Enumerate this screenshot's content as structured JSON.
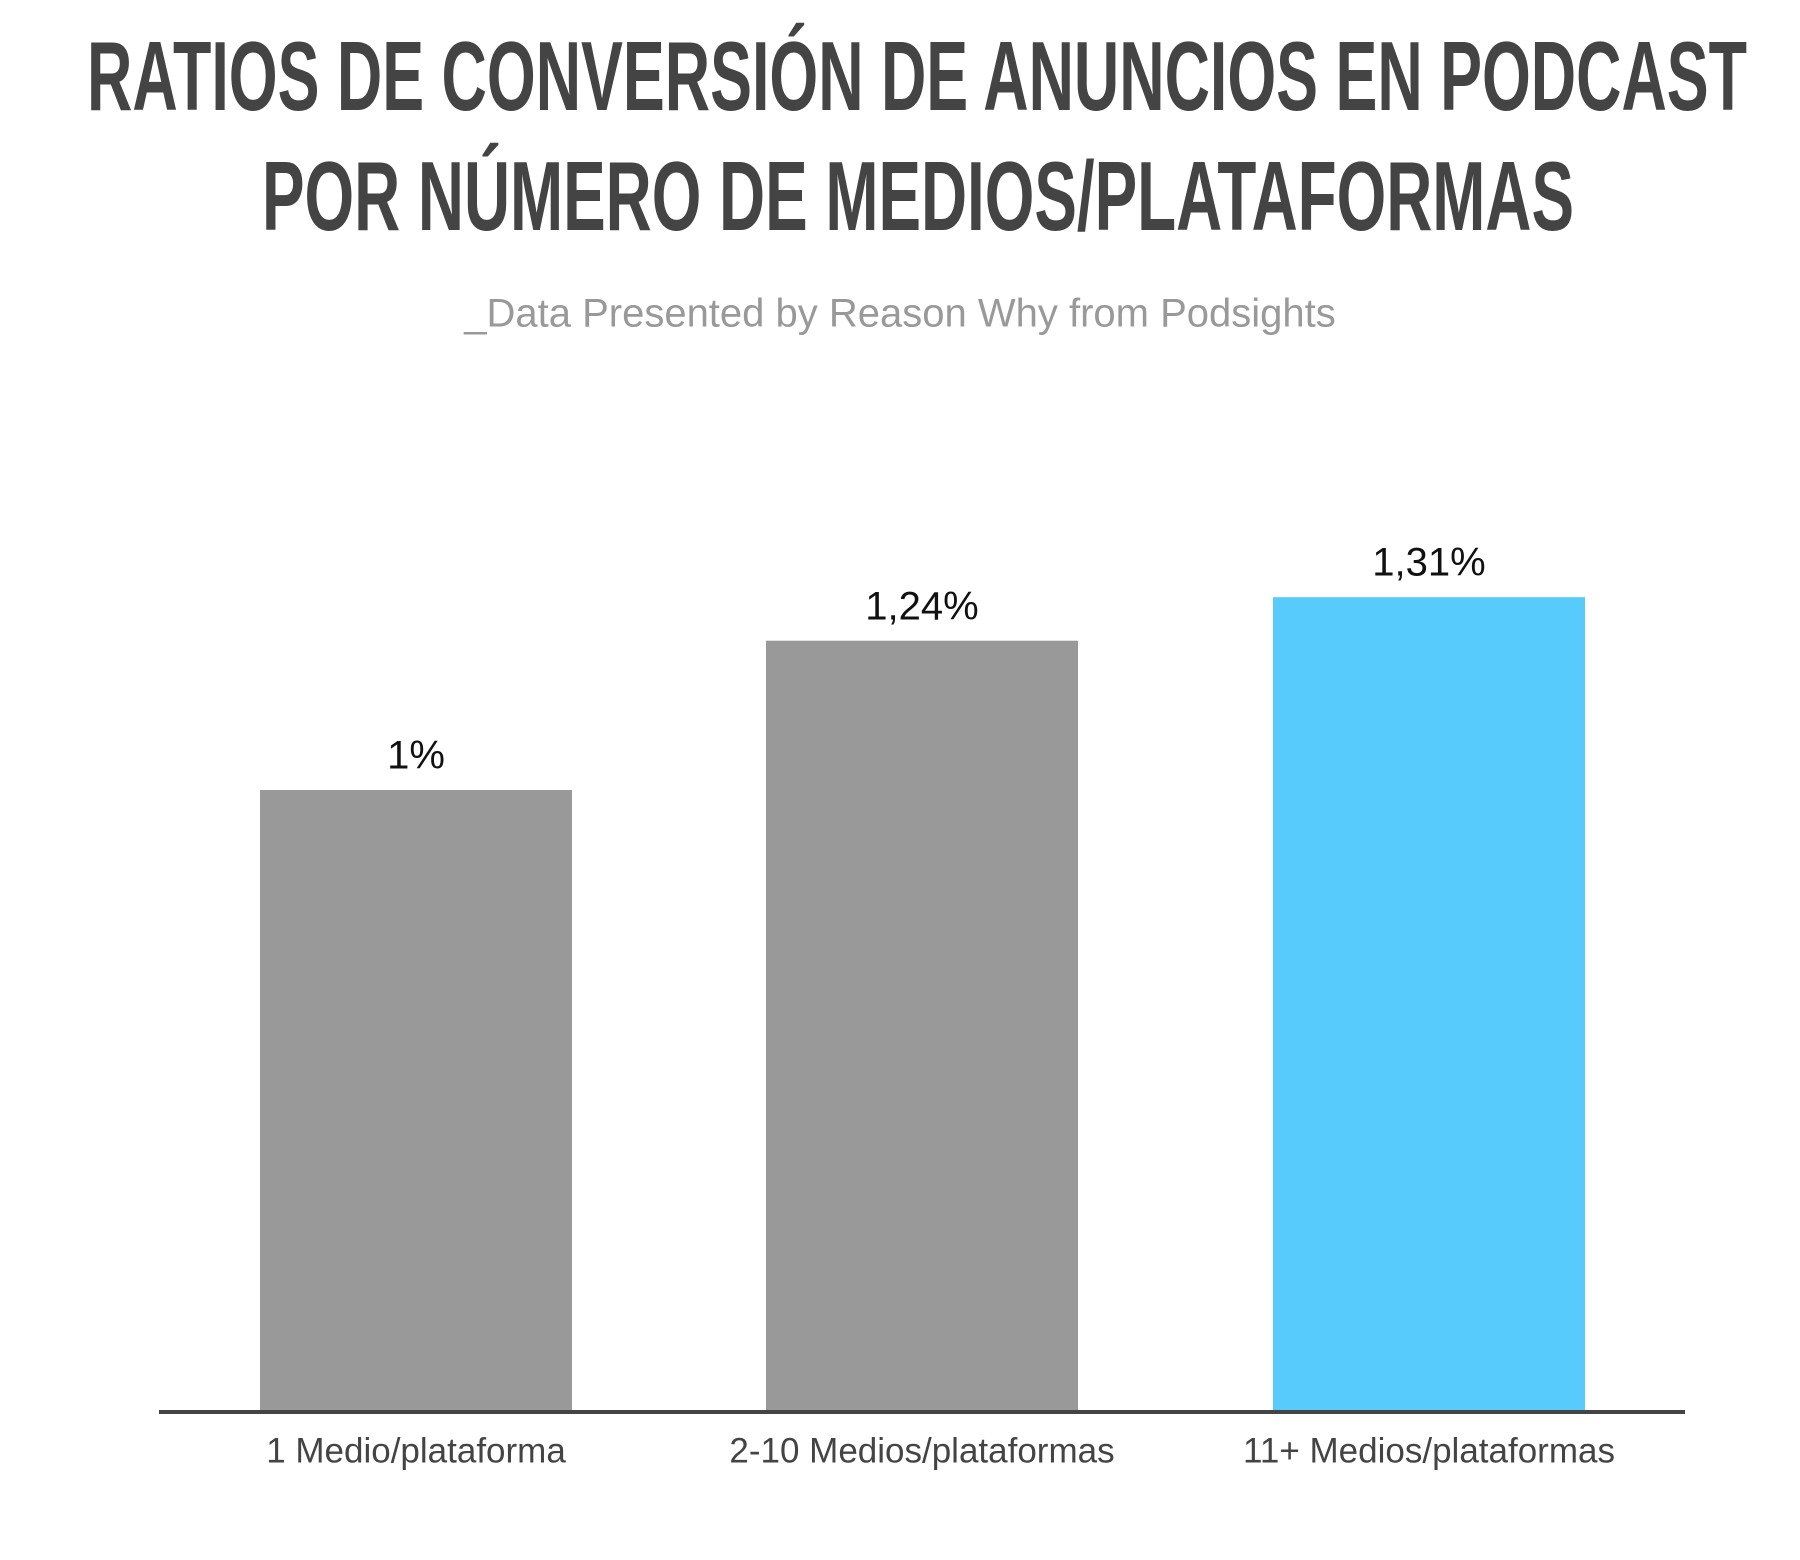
{
  "chart_data": {
    "type": "bar",
    "title": [
      "RATIOS DE CONVERSIÓN DE ANUNCIOS EN PODCAST",
      "POR NÚMERO DE MEDIOS/PLATAFORMAS"
    ],
    "subtitle": "_Data Presented by Reason Why from Podsights",
    "categories": [
      "1 Medio/plataforma",
      "2-10 Medios/plataformas",
      "11+ Medios/plataformas"
    ],
    "values": [
      1,
      1.24,
      1.31
    ],
    "value_labels": [
      "1%",
      "1,24%",
      "1,31%"
    ],
    "colors": [
      "#999999",
      "#999999",
      "#57cbfc"
    ]
  }
}
